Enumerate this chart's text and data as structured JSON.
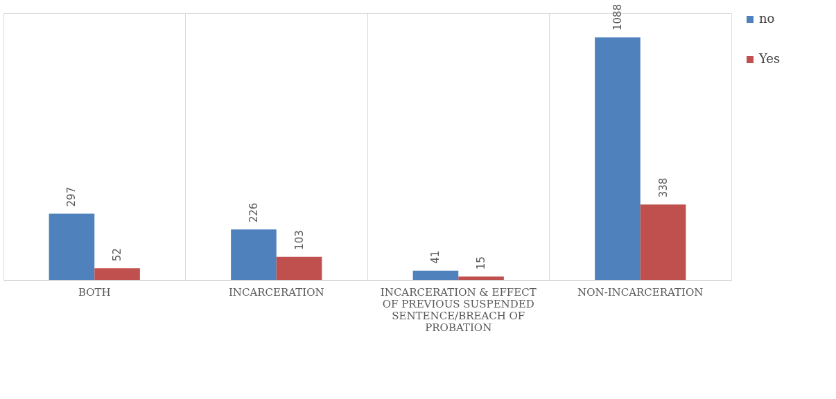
{
  "chart_data": {
    "type": "bar",
    "categories": [
      "BOTH",
      "INCARCERATION",
      "INCARCERATION & EFFECT OF PREVIOUS SUSPENDED SENTENCE/BREACH OF PROBATION",
      "NON-INCARCERATION"
    ],
    "series": [
      {
        "name": "no",
        "color": "#4f81bd",
        "values": [
          297,
          226,
          41,
          1088
        ]
      },
      {
        "name": "Yes",
        "color": "#c0504d",
        "values": [
          52,
          103,
          15,
          338
        ]
      }
    ],
    "data_labels": true,
    "grid": "x",
    "legend": "right"
  }
}
